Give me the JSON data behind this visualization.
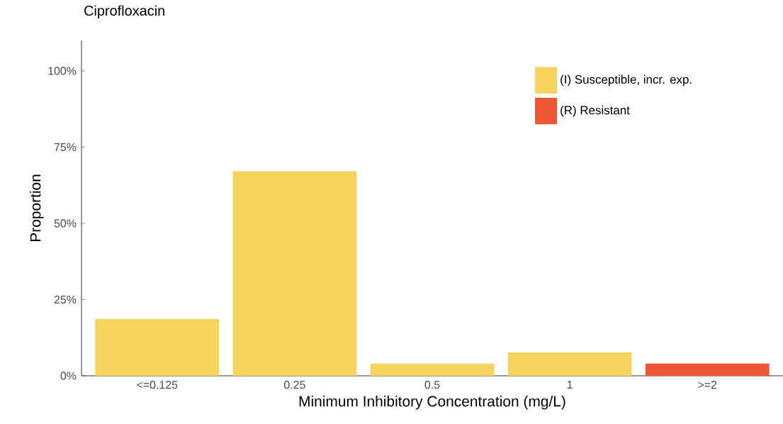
{
  "chart_data": {
    "type": "bar",
    "title": "Ciprofloxacin",
    "xlabel": "Minimum Inhibitory Concentration (mg/L)",
    "ylabel": "Proportion",
    "categories": [
      "<=0.125",
      "0.25",
      "0.5",
      "1",
      ">=2"
    ],
    "series": [
      {
        "name": "(I) Susceptible, incr. exp.",
        "color": "#f4d35e",
        "values": [
          18.6,
          67.1,
          4.0,
          7.7,
          null
        ]
      },
      {
        "name": "(R) Resistant",
        "color": "#ee5535",
        "values": [
          null,
          null,
          null,
          null,
          4.0
        ]
      }
    ],
    "ylim": [
      0,
      110
    ],
    "yticks": [
      {
        "value": 0,
        "label": "0%"
      },
      {
        "value": 25,
        "label": "25%"
      },
      {
        "value": 50,
        "label": "50%"
      },
      {
        "value": 75,
        "label": "75%"
      },
      {
        "value": 100,
        "label": "100%"
      }
    ],
    "legend": "top right"
  }
}
